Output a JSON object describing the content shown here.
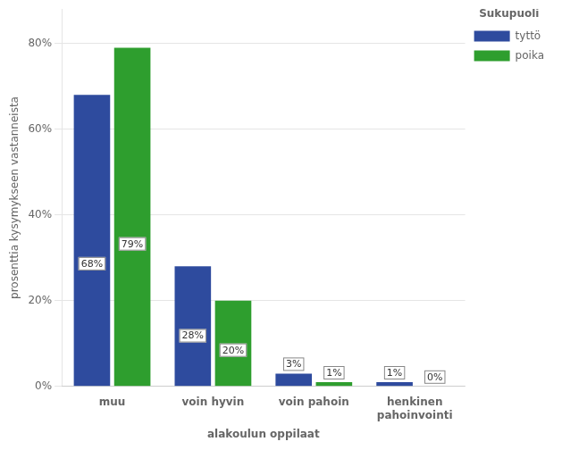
{
  "chart_data": {
    "type": "bar",
    "categories": [
      "muu",
      "voin hyvin",
      "voin pahoin",
      "henkinen\npahoinvointi"
    ],
    "series": [
      {
        "name": "tyttö",
        "color": "#2e4b9e",
        "values": [
          68,
          28,
          3,
          1
        ],
        "value_labels": [
          "68%",
          "28%",
          "3%",
          "1%"
        ]
      },
      {
        "name": "poika",
        "color": "#2e9e2e",
        "values": [
          79,
          20,
          1,
          0
        ],
        "value_labels": [
          "79%",
          "20%",
          "1%",
          "0%"
        ]
      }
    ],
    "xlabel": "alakoulun oppilaat",
    "ylabel": "prosenttia kysymykseen vastanneista",
    "legend_title": "Sukupuoli",
    "legend": "right",
    "ylim": [
      0,
      88
    ],
    "yticks": [
      {
        "value": 0,
        "label": "0%"
      },
      {
        "value": 20,
        "label": "20%"
      },
      {
        "value": 40,
        "label": "40%"
      },
      {
        "value": 60,
        "label": "60%"
      },
      {
        "value": 80,
        "label": "80%"
      }
    ],
    "grid": true,
    "data_labels": true
  }
}
